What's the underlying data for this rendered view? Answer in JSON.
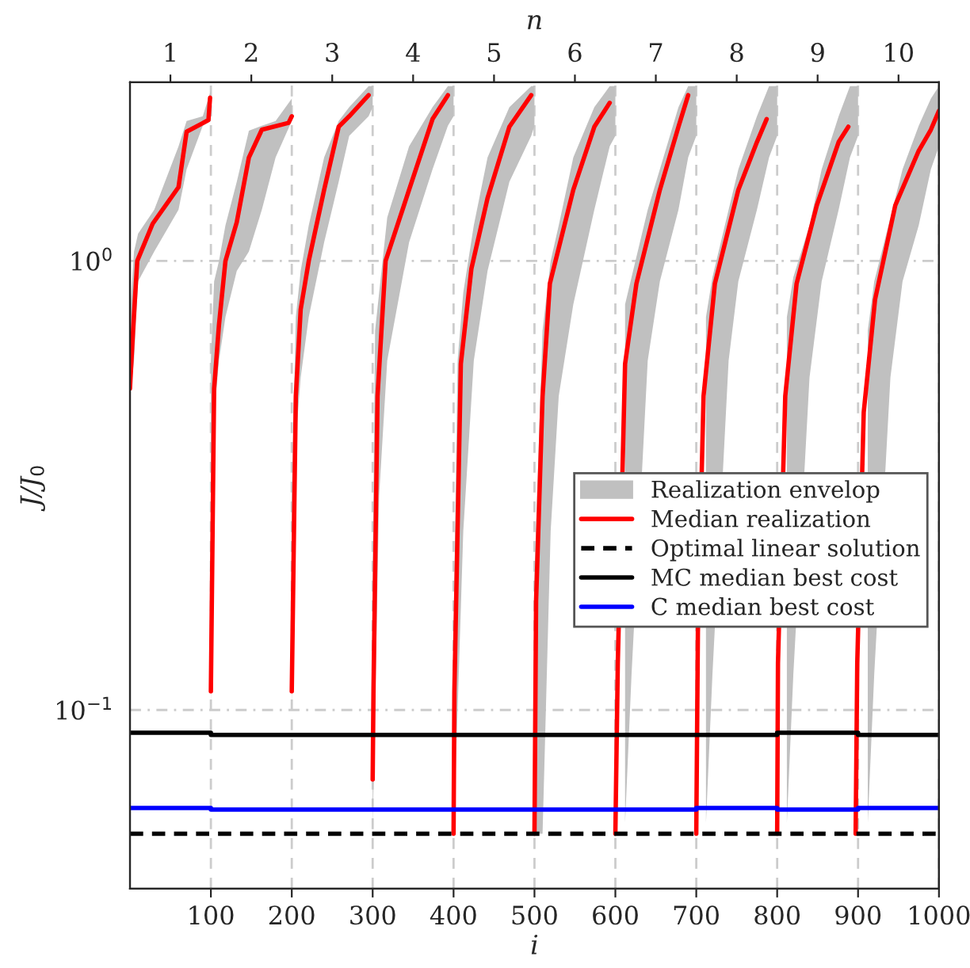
{
  "chart_data": {
    "type": "line",
    "xlabel": "i",
    "ylabel": "J/J$_{0}$",
    "x2label": "n",
    "log": "y",
    "grid": true,
    "legend": "center right",
    "xlim": [
      0,
      1000
    ],
    "xticks": [
      100,
      200,
      300,
      400,
      500,
      600,
      700,
      800,
      900,
      1000
    ],
    "x2lim": [
      0.5,
      10.5
    ],
    "x2ticks": [
      1,
      2,
      3,
      4,
      5,
      6,
      7,
      8,
      9,
      10
    ],
    "ylim": [
      0.04,
      2.5
    ],
    "yticks": [
      {
        "value": 0.1,
        "label": "10$^{−1}$"
      },
      {
        "value": 1,
        "label": "10$^{0}$"
      }
    ],
    "series": [
      {
        "name": "Realization envelop",
        "type": "area",
        "color": "#c0c0c0",
        "x": [
          0,
          5,
          10,
          30,
          60,
          70,
          90,
          100,
          null,
          100,
          104,
          110,
          118,
          132,
          147,
          163,
          180,
          200,
          null,
          200,
          205,
          211,
          221,
          240,
          258,
          271,
          295,
          300,
          null,
          300,
          303,
          308,
          318,
          345,
          374,
          393,
          400,
          null,
          400,
          405,
          412,
          425,
          442,
          469,
          496,
          500,
          null,
          500,
          510,
          520,
          530,
          548,
          574,
          593,
          600,
          null,
          612,
          620,
          640,
          655,
          678,
          690,
          700,
          null,
          712,
          720,
          740,
          752,
          775,
          790,
          800,
          null,
          812,
          820,
          840,
          855,
          876,
          890,
          900,
          null,
          912,
          920,
          940,
          955,
          975,
          990,
          1000
        ],
        "upper": [
          0.75,
          1.05,
          1.15,
          1.3,
          1.8,
          2.05,
          2.1,
          2.4,
          null,
          0.6,
          0.9,
          1.0,
          1.2,
          1.5,
          1.95,
          2.0,
          2.05,
          2.3,
          null,
          0.3,
          0.75,
          0.95,
          1.2,
          1.7,
          2.05,
          2.2,
          2.45,
          2.45,
          null,
          0.2,
          0.7,
          0.85,
          1.25,
          1.8,
          2.2,
          2.45,
          2.45,
          null,
          0.15,
          0.6,
          0.85,
          1.2,
          1.7,
          2.2,
          2.45,
          2.45,
          null,
          0.2,
          0.7,
          1.0,
          1.2,
          1.7,
          2.2,
          2.45,
          2.45,
          null,
          0.8,
          0.92,
          1.3,
          1.6,
          2.2,
          2.45,
          2.45,
          null,
          0.75,
          0.92,
          1.3,
          1.6,
          2.1,
          2.45,
          2.45,
          null,
          0.75,
          0.92,
          1.2,
          1.6,
          2.1,
          2.45,
          2.45,
          null,
          0.7,
          0.9,
          1.25,
          1.6,
          2.0,
          2.3,
          2.45
        ],
        "lower": [
          0.5,
          0.6,
          0.9,
          1.05,
          1.3,
          1.6,
          2.0,
          2.05,
          null,
          0.1,
          0.45,
          0.6,
          0.75,
          0.95,
          1.05,
          1.3,
          1.7,
          2.05,
          null,
          0.1,
          0.4,
          0.55,
          0.75,
          1.1,
          1.5,
          1.9,
          2.1,
          2.2,
          null,
          0.055,
          0.1,
          0.3,
          0.6,
          1.1,
          1.6,
          2.0,
          2.1,
          null,
          0.053,
          0.1,
          0.25,
          0.6,
          0.95,
          1.5,
          1.9,
          2.0,
          null,
          0.053,
          0.053,
          0.25,
          0.5,
          0.8,
          1.3,
          1.8,
          1.9,
          null,
          0.056,
          0.12,
          0.6,
          0.9,
          1.3,
          1.7,
          1.9,
          null,
          0.056,
          0.12,
          0.6,
          0.9,
          1.3,
          1.7,
          1.9,
          null,
          0.056,
          0.12,
          0.55,
          0.9,
          1.3,
          1.7,
          1.9,
          null,
          0.056,
          0.12,
          0.55,
          0.9,
          1.2,
          1.6,
          1.8
        ],
        "values": [
          null,
          null,
          null,
          null,
          null,
          null,
          null,
          null,
          null,
          null,
          null,
          null,
          null,
          null,
          null,
          null,
          null,
          null,
          null,
          null,
          null,
          null,
          null,
          null,
          null,
          null,
          null,
          null,
          null,
          null,
          null,
          null,
          null,
          null,
          null,
          null,
          null,
          null,
          null,
          null,
          null,
          null,
          null,
          null,
          null,
          null,
          null,
          null,
          null,
          null,
          null,
          null,
          null,
          null,
          null,
          null,
          null,
          null,
          null,
          null,
          null,
          null,
          null,
          null,
          null,
          null,
          null,
          null,
          null,
          null,
          null,
          null,
          null,
          null,
          null,
          null,
          null,
          null,
          null,
          null,
          null,
          null,
          null,
          null,
          null,
          null,
          null
        ]
      },
      {
        "name": "Median realization",
        "color": "#ff0000",
        "x": [
          0,
          4,
          9,
          28,
          60,
          70,
          97,
          99,
          null,
          100,
          104,
          110,
          118,
          132,
          147,
          163,
          196,
          200,
          null,
          200,
          205,
          211,
          221,
          240,
          258,
          271,
          295,
          null,
          300,
          301,
          306,
          316,
          345,
          374,
          393,
          null,
          400,
          401,
          409,
          422,
          442,
          469,
          496,
          null,
          500,
          502,
          510,
          519,
          548,
          574,
          593,
          null,
          600,
          603,
          612,
          626,
          655,
          678,
          690,
          null,
          700,
          702,
          709,
          723,
          752,
          775,
          787,
          null,
          800,
          801,
          810,
          824,
          849,
          876,
          888,
          null,
          897,
          899,
          907,
          921,
          946,
          975,
          990,
          1000
        ],
        "values": [
          0.52,
          0.71,
          1.0,
          1.21,
          1.46,
          1.94,
          2.06,
          2.31,
          null,
          0.11,
          0.52,
          0.72,
          1.0,
          1.22,
          1.7,
          1.96,
          2.03,
          2.1,
          null,
          0.11,
          0.5,
          0.78,
          1.0,
          1.44,
          1.99,
          2.1,
          2.34,
          null,
          0.07,
          0.11,
          0.5,
          1.0,
          1.44,
          2.07,
          2.34,
          null,
          0.053,
          0.11,
          0.59,
          0.96,
          1.38,
          1.99,
          2.34,
          null,
          0.053,
          0.175,
          0.5,
          0.89,
          1.44,
          1.99,
          2.25,
          null,
          0.053,
          0.127,
          0.59,
          0.89,
          1.44,
          1.99,
          2.34,
          null,
          0.053,
          0.149,
          0.5,
          0.89,
          1.44,
          1.84,
          2.07,
          null,
          0.053,
          0.127,
          0.5,
          0.89,
          1.33,
          1.84,
          1.99,
          null,
          0.053,
          0.127,
          0.46,
          0.82,
          1.33,
          1.76,
          1.96,
          2.16
        ]
      },
      {
        "name": "Optimal linear solution",
        "type": "line",
        "line_style": "dashed",
        "color": "#000000",
        "x": [
          0,
          1000
        ],
        "values": [
          0.053,
          0.053
        ]
      },
      {
        "name": "MC median best cost",
        "type": "step",
        "color": "#000000",
        "x": [
          0,
          100,
          200,
          300,
          400,
          500,
          600,
          700,
          800,
          900,
          1000
        ],
        "values": [
          0.089,
          0.088,
          0.088,
          0.088,
          0.088,
          0.088,
          0.088,
          0.088,
          0.089,
          0.088,
          0.088
        ]
      },
      {
        "name": "C median best cost",
        "type": "step",
        "color": "#0000ff",
        "x": [
          0,
          100,
          200,
          300,
          400,
          500,
          600,
          700,
          800,
          900,
          1000
        ],
        "values": [
          0.0605,
          0.06,
          0.06,
          0.06,
          0.06,
          0.06,
          0.06,
          0.0605,
          0.06,
          0.0605,
          0.0605
        ]
      }
    ]
  }
}
